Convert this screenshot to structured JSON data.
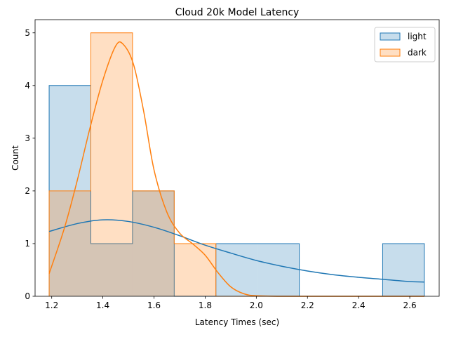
{
  "chart_data": {
    "type": "histogram",
    "title": "Cloud 20k Model Latency",
    "xlabel": "Latency Times (sec)",
    "ylabel": "Count",
    "xlim": [
      1.135,
      2.715
    ],
    "ylim": [
      0,
      5.25
    ],
    "xticks": [
      1.2,
      1.4,
      1.6,
      1.8,
      2.0,
      2.2,
      2.4,
      2.6
    ],
    "yticks": [
      0,
      1,
      2,
      3,
      4,
      5
    ],
    "grid": false,
    "legend_position": "top-right",
    "bin_edges": [
      1.19,
      1.353,
      1.516,
      1.679,
      1.842,
      2.005,
      2.168,
      2.331,
      2.494,
      2.657
    ],
    "series": [
      {
        "name": "light",
        "color": "#1f77b4",
        "counts": [
          4,
          1,
          2,
          0,
          1,
          1,
          0,
          0,
          1
        ],
        "kde": {
          "x": [
            1.19,
            1.3,
            1.4,
            1.5,
            1.6,
            1.7,
            1.8,
            1.9,
            2.0,
            2.1,
            2.2,
            2.3,
            2.4,
            2.5,
            2.6,
            2.657
          ],
          "y": [
            1.23,
            1.38,
            1.45,
            1.42,
            1.31,
            1.15,
            0.97,
            0.82,
            0.68,
            0.57,
            0.48,
            0.41,
            0.36,
            0.32,
            0.28,
            0.27
          ]
        }
      },
      {
        "name": "dark",
        "color": "#ff7f0e",
        "counts": [
          2,
          5,
          2,
          1,
          0,
          0,
          0,
          0,
          0
        ],
        "kde": {
          "x": [
            1.19,
            1.25,
            1.3,
            1.35,
            1.4,
            1.45,
            1.48,
            1.52,
            1.56,
            1.6,
            1.65,
            1.7,
            1.75,
            1.8,
            1.85,
            1.9,
            1.95,
            2.0,
            2.1,
            2.2,
            2.4,
            2.657
          ],
          "y": [
            0.43,
            1.3,
            2.2,
            3.2,
            4.1,
            4.75,
            4.78,
            4.4,
            3.5,
            2.4,
            1.6,
            1.2,
            1.0,
            0.78,
            0.45,
            0.18,
            0.05,
            0.01,
            0.0,
            0.0,
            0.0,
            0.0
          ]
        }
      }
    ]
  }
}
